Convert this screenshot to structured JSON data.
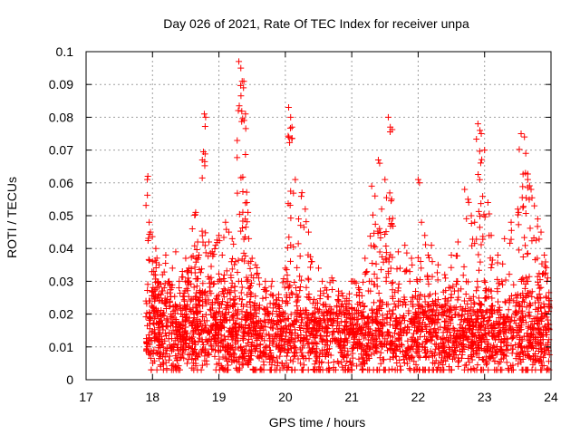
{
  "chart_data": {
    "type": "scatter",
    "title": "Day 026 of 2021, Rate Of TEC Index for receiver unpa",
    "xlabel": "GPS time / hours",
    "ylabel": "ROTI / TECUs",
    "xlim": [
      17,
      24
    ],
    "ylim": [
      0,
      0.1
    ],
    "x_ticks": [
      "17",
      "18",
      "19",
      "20",
      "21",
      "22",
      "23",
      "24"
    ],
    "y_ticks": [
      "0",
      "0.01",
      "0.02",
      "0.03",
      "0.04",
      "0.05",
      "0.06",
      "0.07",
      "0.08",
      "0.09",
      "0.1"
    ],
    "grid": true,
    "marker": "+",
    "color": "#ff0000",
    "series": [
      {
        "name": "ROTI",
        "x": [
          17.93,
          17.95,
          17.97,
          18.0,
          18.02,
          18.05,
          18.1,
          18.15,
          18.2,
          18.25,
          18.3,
          18.35,
          18.4,
          18.45,
          18.5,
          18.55,
          18.6,
          18.65,
          18.68,
          18.7,
          18.75,
          18.78,
          18.8,
          18.85,
          18.9,
          18.95,
          19.0,
          19.05,
          19.1,
          19.15,
          19.2,
          19.25,
          19.3,
          19.33,
          19.35,
          19.37,
          19.4,
          19.42,
          19.45,
          19.5,
          19.55,
          19.6,
          19.7,
          19.8,
          19.9,
          20.0,
          20.05,
          20.08,
          20.1,
          20.15,
          20.2,
          20.25,
          20.3,
          20.35,
          20.4,
          20.5,
          20.6,
          20.7,
          20.8,
          20.9,
          21.0,
          21.1,
          21.2,
          21.3,
          21.35,
          21.4,
          21.42,
          21.45,
          21.5,
          21.55,
          21.58,
          21.6,
          21.7,
          21.8,
          21.9,
          22.0,
          22.02,
          22.05,
          22.1,
          22.15,
          22.2,
          22.3,
          22.4,
          22.5,
          22.6,
          22.7,
          22.75,
          22.8,
          22.85,
          22.9,
          22.93,
          22.95,
          23.0,
          23.05,
          23.1,
          23.2,
          23.3,
          23.4,
          23.5,
          23.55,
          23.6,
          23.62,
          23.65,
          23.7,
          23.75,
          23.8,
          23.85,
          23.9,
          23.95
        ],
        "y": [
          0.062,
          0.048,
          0.045,
          0.036,
          0.033,
          0.04,
          0.035,
          0.032,
          0.038,
          0.03,
          0.034,
          0.039,
          0.028,
          0.033,
          0.037,
          0.034,
          0.046,
          0.051,
          0.042,
          0.038,
          0.067,
          0.081,
          0.08,
          0.042,
          0.039,
          0.041,
          0.044,
          0.038,
          0.048,
          0.045,
          0.043,
          0.036,
          0.097,
          0.095,
          0.091,
          0.089,
          0.081,
          0.054,
          0.043,
          0.037,
          0.035,
          0.031,
          0.028,
          0.03,
          0.026,
          0.034,
          0.083,
          0.08,
          0.077,
          0.061,
          0.049,
          0.057,
          0.052,
          0.045,
          0.036,
          0.034,
          0.028,
          0.031,
          0.027,
          0.024,
          0.022,
          0.028,
          0.037,
          0.059,
          0.056,
          0.067,
          0.066,
          0.052,
          0.061,
          0.08,
          0.077,
          0.055,
          0.039,
          0.041,
          0.037,
          0.061,
          0.06,
          0.048,
          0.044,
          0.038,
          0.041,
          0.035,
          0.032,
          0.038,
          0.042,
          0.058,
          0.055,
          0.05,
          0.048,
          0.078,
          0.076,
          0.075,
          0.07,
          0.054,
          0.044,
          0.038,
          0.043,
          0.048,
          0.052,
          0.075,
          0.074,
          0.069,
          0.061,
          0.058,
          0.053,
          0.049,
          0.045,
          0.038,
          0.031
        ],
        "dense_band": {
          "x_range": [
            17.9,
            23.98
          ],
          "y_range": [
            0.003,
            0.03
          ],
          "typical": 0.013
        }
      }
    ]
  }
}
